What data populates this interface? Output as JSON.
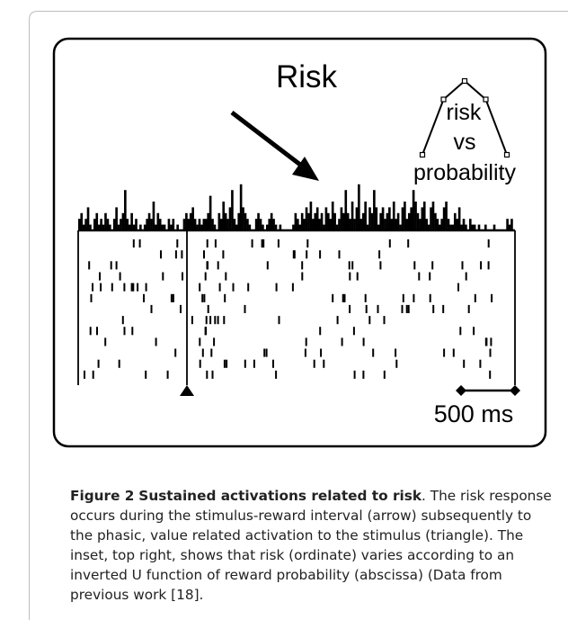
{
  "figure": {
    "title": "Risk",
    "inset": {
      "line1": "risk",
      "line2": "vs",
      "line3": "probability"
    },
    "scale_bar_label": "500 ms"
  },
  "caption": {
    "label": "Figure 2",
    "title": "Sustained activations related to risk",
    "body": ". The risk response occurs during the stimulus-reward interval (arrow) subsequently to the phasic, value related activation to the stimulus (triangle). The inset, top right, shows that risk (ordinate) varies according to an inverted U function of reward probability (abscissa) (Data from previous work [18]."
  },
  "chart_data": {
    "type": "bar",
    "title": "Risk",
    "xlabel": "",
    "ylabel": "",
    "scale_bar": "500 ms",
    "values": [
      2,
      3,
      1,
      2,
      4,
      1,
      0,
      2,
      3,
      1,
      2,
      1,
      3,
      2,
      1,
      0,
      2,
      4,
      1,
      2,
      3,
      7,
      2,
      1,
      3,
      1,
      2,
      0,
      1,
      0,
      1,
      2,
      3,
      2,
      5,
      1,
      3,
      2,
      1,
      1,
      0,
      2,
      1,
      2,
      0,
      1,
      0,
      0,
      2,
      3,
      2,
      3,
      4,
      2,
      1,
      2,
      1,
      2,
      2,
      3,
      6,
      2,
      1,
      0,
      3,
      2,
      5,
      3,
      2,
      4,
      7,
      2,
      1,
      3,
      8,
      4,
      3,
      2,
      1,
      0,
      0,
      2,
      3,
      2,
      1,
      0,
      1,
      2,
      3,
      2,
      1,
      0,
      1,
      0,
      0,
      0,
      0,
      0,
      1,
      3,
      2,
      1,
      3,
      2,
      4,
      3,
      5,
      2,
      3,
      4,
      2,
      3,
      1,
      4,
      3,
      2,
      5,
      3,
      1,
      2,
      4,
      3,
      7,
      3,
      2,
      5,
      2,
      4,
      8,
      2,
      3,
      5,
      1,
      4,
      3,
      7,
      4,
      1,
      3,
      4,
      2,
      3,
      4,
      2,
      5,
      2,
      3,
      1,
      4,
      5,
      2,
      3,
      4,
      7,
      5,
      3,
      2,
      4,
      5,
      2,
      1,
      4,
      5,
      3,
      2,
      1,
      2,
      4,
      5,
      2,
      1,
      1,
      3,
      2,
      4,
      1,
      2,
      1,
      0,
      2,
      1,
      1,
      0,
      1,
      0,
      0,
      1,
      0,
      0,
      0,
      1,
      0,
      0,
      0,
      0,
      0,
      2,
      1,
      2,
      0
    ],
    "inset": {
      "type": "line",
      "x": [
        0,
        0.25,
        0.5,
        0.75,
        1
      ],
      "y": [
        0,
        0.75,
        1,
        0.75,
        0
      ],
      "xlabel": "probability",
      "ylabel": "risk"
    },
    "raster_trials": 13
  }
}
